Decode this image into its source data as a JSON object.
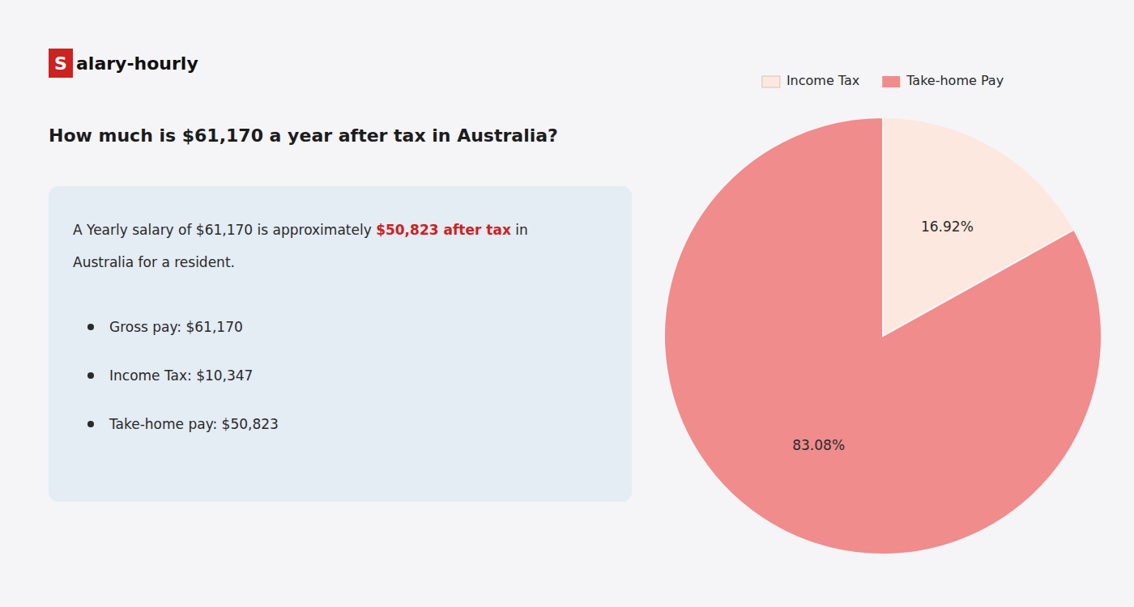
{
  "chart_data": {
    "type": "pie",
    "title": "How much is $61,170 a year after tax in Australia?",
    "categories": [
      "Income Tax",
      "Take-home Pay"
    ],
    "values": [
      16.92,
      83.08
    ],
    "value_labels": [
      "16.92%",
      "83.08%"
    ],
    "colors": [
      "#fde8df",
      "#f08c8c"
    ],
    "data_labels": true,
    "legend": "top",
    "annotations": [
      {
        "text": "S",
        "color": "#cc2222"
      },
      {
        "text": "alary-hourly"
      },
      {
        "text": "A Yearly salary of $61,170 is approximately "
      },
      {
        "text": "$50,823 after tax",
        "color": "#cc2222"
      },
      {
        "text": " in"
      },
      {
        "text": "Australia for a resident."
      },
      {
        "text": "Gross pay: $61,170"
      },
      {
        "text": "Income Tax: $10,347"
      },
      {
        "text": "Take-home pay: $50,823"
      }
    ]
  }
}
